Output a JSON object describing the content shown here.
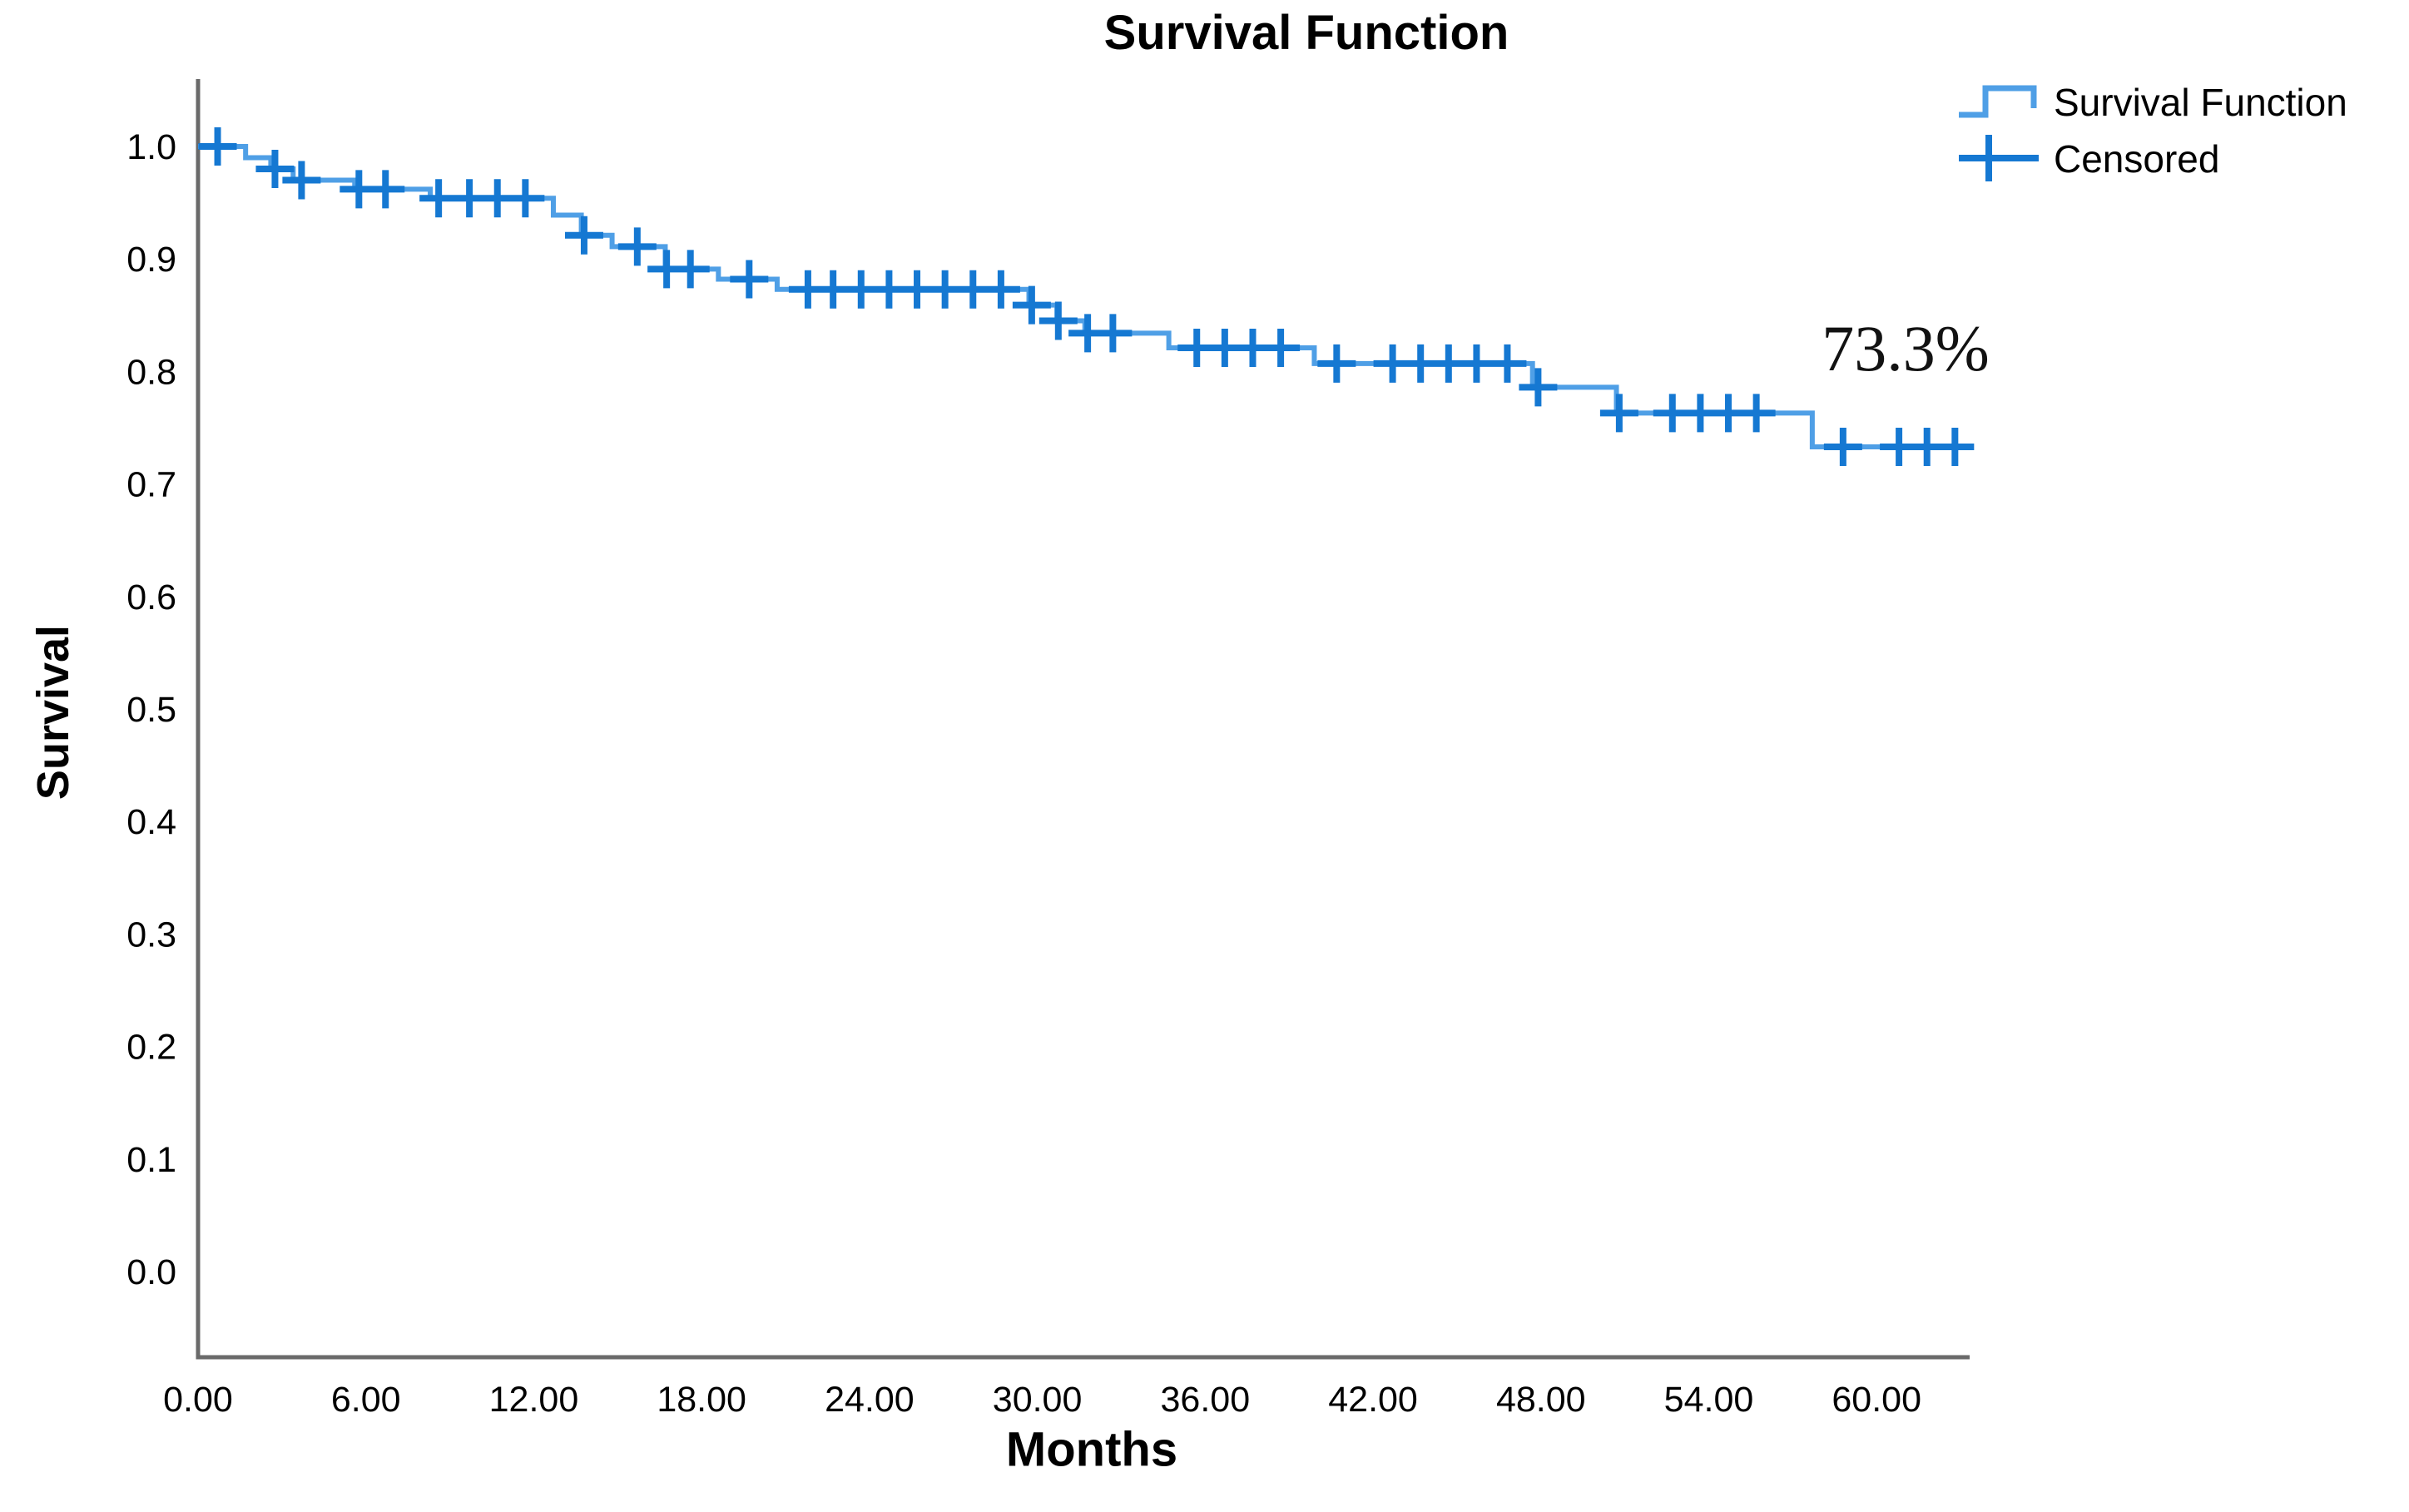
{
  "chart_data": {
    "type": "line",
    "subtype": "kaplan-meier-step",
    "title": "Survival Function",
    "xlabel": "Months",
    "ylabel": "Survival",
    "xlim": [
      0,
      63.4
    ],
    "ylim": [
      0,
      1.05
    ],
    "grid": false,
    "legend_position": "top-right",
    "legend_entries": [
      {
        "label": "Survival Function",
        "symbol": "step-line"
      },
      {
        "label": "Censored",
        "symbol": "plus"
      }
    ],
    "annotation": {
      "text": "73.3%",
      "x_month": 61.2,
      "y_survival": 0.82
    },
    "x_ticks": [
      {
        "value": 0,
        "label": "0.00"
      },
      {
        "value": 6,
        "label": "6.00"
      },
      {
        "value": 12,
        "label": "12.00"
      },
      {
        "value": 18,
        "label": "18.00"
      },
      {
        "value": 24,
        "label": "24.00"
      },
      {
        "value": 30,
        "label": "30.00"
      },
      {
        "value": 36,
        "label": "36.00"
      },
      {
        "value": 42,
        "label": "42.00"
      },
      {
        "value": 48,
        "label": "48.00"
      },
      {
        "value": 54,
        "label": "54.00"
      },
      {
        "value": 60,
        "label": "60.00"
      }
    ],
    "y_ticks": [
      {
        "value": 1.0,
        "label": "1.0"
      },
      {
        "value": 0.9,
        "label": "0.9"
      },
      {
        "value": 0.8,
        "label": "0.8"
      },
      {
        "value": 0.7,
        "label": "0.7"
      },
      {
        "value": 0.6,
        "label": "0.6"
      },
      {
        "value": 0.5,
        "label": "0.5"
      },
      {
        "value": 0.4,
        "label": "0.4"
      },
      {
        "value": 0.3,
        "label": "0.3"
      },
      {
        "value": 0.2,
        "label": "0.2"
      },
      {
        "value": 0.1,
        "label": "0.1"
      },
      {
        "value": 0.0,
        "label": "0.0"
      }
    ],
    "end_time": 63.1,
    "steps": [
      [
        0.0,
        1.0
      ],
      [
        1.7,
        0.99
      ],
      [
        2.6,
        0.98
      ],
      [
        3.4,
        0.97
      ],
      [
        5.6,
        0.962
      ],
      [
        8.3,
        0.954
      ],
      [
        12.7,
        0.939
      ],
      [
        13.7,
        0.921
      ],
      [
        14.8,
        0.911
      ],
      [
        16.7,
        0.891
      ],
      [
        18.6,
        0.882
      ],
      [
        20.7,
        0.873
      ],
      [
        29.7,
        0.859
      ],
      [
        30.7,
        0.845
      ],
      [
        31.7,
        0.834
      ],
      [
        34.7,
        0.821
      ],
      [
        39.9,
        0.807
      ],
      [
        47.7,
        0.786
      ],
      [
        50.7,
        0.763
      ],
      [
        57.7,
        0.733
      ]
    ],
    "censored": [
      [
        0.7,
        1.0
      ],
      [
        2.75,
        0.98
      ],
      [
        3.7,
        0.97
      ],
      [
        5.75,
        0.962
      ],
      [
        6.7,
        0.962
      ],
      [
        8.6,
        0.954
      ],
      [
        9.7,
        0.954
      ],
      [
        10.7,
        0.954
      ],
      [
        11.7,
        0.954
      ],
      [
        13.8,
        0.921
      ],
      [
        15.7,
        0.911
      ],
      [
        16.75,
        0.891
      ],
      [
        17.6,
        0.891
      ],
      [
        19.7,
        0.882
      ],
      [
        21.8,
        0.873
      ],
      [
        22.7,
        0.873
      ],
      [
        23.7,
        0.873
      ],
      [
        24.7,
        0.873
      ],
      [
        25.7,
        0.873
      ],
      [
        26.7,
        0.873
      ],
      [
        27.7,
        0.873
      ],
      [
        28.7,
        0.873
      ],
      [
        29.8,
        0.859
      ],
      [
        30.75,
        0.845
      ],
      [
        31.8,
        0.834
      ],
      [
        32.7,
        0.834
      ],
      [
        35.7,
        0.821
      ],
      [
        36.7,
        0.821
      ],
      [
        37.7,
        0.821
      ],
      [
        38.7,
        0.821
      ],
      [
        40.7,
        0.807
      ],
      [
        42.7,
        0.807
      ],
      [
        43.7,
        0.807
      ],
      [
        44.7,
        0.807
      ],
      [
        45.7,
        0.807
      ],
      [
        46.8,
        0.807
      ],
      [
        47.9,
        0.786
      ],
      [
        50.8,
        0.763
      ],
      [
        52.7,
        0.763
      ],
      [
        53.7,
        0.763
      ],
      [
        54.7,
        0.763
      ],
      [
        55.7,
        0.763
      ],
      [
        58.8,
        0.733
      ],
      [
        60.8,
        0.733
      ],
      [
        61.8,
        0.733
      ],
      [
        62.8,
        0.733
      ]
    ],
    "colors": {
      "line": "#4f9fe6",
      "censor": "#1578d2",
      "axis": "#6a6a6a",
      "text": "#000000",
      "annotation": "#121212"
    }
  }
}
